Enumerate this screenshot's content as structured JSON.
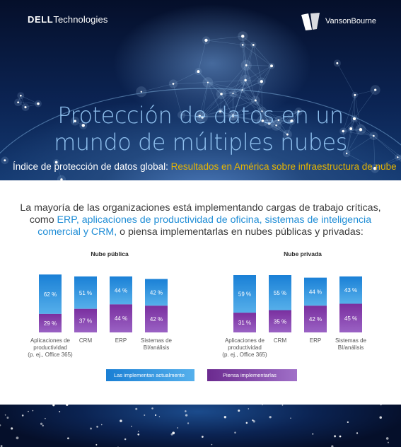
{
  "header": {
    "dell_brand_bold": "DELL",
    "dell_brand_rest": "Technologies",
    "vb_brand": "VansonBourne",
    "title_line1": "Protección de datos en un",
    "title_line2": "mundo de múltiples nubes",
    "subtitle_prefix": "Índice de protección de datos global:",
    "subtitle_highlight": "Resultados en América sobre infraestructura de nube"
  },
  "intro": {
    "part1": "La mayoría de las organizaciones está implementando cargas de trabajo críticas, como",
    "highlight": "ERP, aplicaciones de productividad de oficina, sistemas de inteligencia comercial y CRM,",
    "part2": "o piensa implementarlas en nubes públicas y privadas:"
  },
  "colors": {
    "implemented": "#2f8fdc",
    "planned": "#7d3aa3",
    "accent_yellow": "#e6b400",
    "accent_blue": "#1f8dd6"
  },
  "chart_data": [
    {
      "type": "bar",
      "title": "Nube pública",
      "categories": [
        "Aplicaciones de productividad (p. ej., Office 365)",
        "CRM",
        "ERP",
        "Sistemas de BI/análisis"
      ],
      "series": [
        {
          "name": "Las implementan actualmente",
          "values": [
            62,
            51,
            44,
            42
          ]
        },
        {
          "name": "Piensa implementarlas",
          "values": [
            29,
            37,
            44,
            42
          ]
        }
      ],
      "value_suffix": " %"
    },
    {
      "type": "bar",
      "title": "Nube privada",
      "categories": [
        "Aplicaciones de productividad (p. ej., Office 365)",
        "CRM",
        "ERP",
        "Sistemas de BI/análisis"
      ],
      "series": [
        {
          "name": "Las implementan actualmente",
          "values": [
            59,
            55,
            44,
            43
          ]
        },
        {
          "name": "Piensa implementarlas",
          "values": [
            31,
            35,
            42,
            45
          ]
        }
      ],
      "value_suffix": " %"
    }
  ],
  "legend": {
    "implemented": "Las implementan actualmente",
    "planned": "Piensa implementarlas"
  }
}
